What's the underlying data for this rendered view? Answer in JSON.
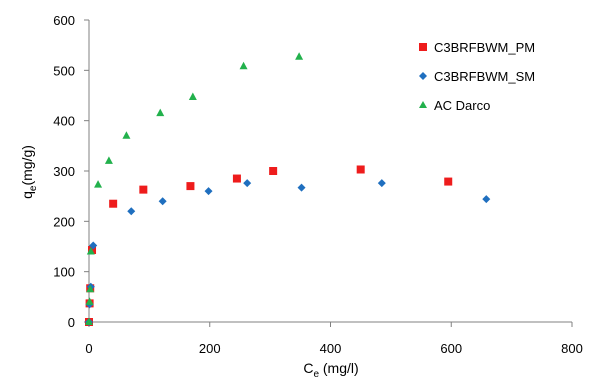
{
  "chart_data": {
    "type": "scatter",
    "xlabel": "C",
    "xlabel_sub": "e",
    "xlabel_suffix": " (mg/l)",
    "ylabel": "q",
    "ylabel_sub": "e",
    "ylabel_suffix": "(mg/g)",
    "xlim": [
      0,
      800
    ],
    "ylim": [
      0,
      600
    ],
    "xticks": [
      0,
      200,
      400,
      600,
      800
    ],
    "yticks": [
      0,
      100,
      200,
      300,
      400,
      500,
      600
    ],
    "grid": false,
    "legend_position": "top-right",
    "series": [
      {
        "name": "C3BRFBWM_PM",
        "marker": "square",
        "color": "#ee1c1c",
        "points": [
          {
            "x": 0,
            "y": 0
          },
          {
            "x": 1,
            "y": 37
          },
          {
            "x": 2,
            "y": 67
          },
          {
            "x": 5,
            "y": 143
          },
          {
            "x": 40,
            "y": 235
          },
          {
            "x": 90,
            "y": 263
          },
          {
            "x": 168,
            "y": 270
          },
          {
            "x": 245,
            "y": 285
          },
          {
            "x": 305,
            "y": 300
          },
          {
            "x": 450,
            "y": 303
          },
          {
            "x": 595,
            "y": 279
          }
        ]
      },
      {
        "name": "C3BRFBWM_SM",
        "marker": "diamond",
        "color": "#1f6fbf",
        "points": [
          {
            "x": 0,
            "y": 0
          },
          {
            "x": 1,
            "y": 35
          },
          {
            "x": 3,
            "y": 70
          },
          {
            "x": 7,
            "y": 152
          },
          {
            "x": 70,
            "y": 220
          },
          {
            "x": 122,
            "y": 240
          },
          {
            "x": 198,
            "y": 260
          },
          {
            "x": 262,
            "y": 276
          },
          {
            "x": 352,
            "y": 267
          },
          {
            "x": 485,
            "y": 276
          },
          {
            "x": 658,
            "y": 244
          }
        ]
      },
      {
        "name": "AC Darco",
        "marker": "triangle",
        "color": "#22b14c",
        "points": [
          {
            "x": 0,
            "y": 0
          },
          {
            "x": 1,
            "y": 40
          },
          {
            "x": 2,
            "y": 65
          },
          {
            "x": 3,
            "y": 140
          },
          {
            "x": 15,
            "y": 273
          },
          {
            "x": 33,
            "y": 320
          },
          {
            "x": 62,
            "y": 370
          },
          {
            "x": 118,
            "y": 415
          },
          {
            "x": 172,
            "y": 447
          },
          {
            "x": 256,
            "y": 508
          },
          {
            "x": 348,
            "y": 527
          }
        ]
      }
    ]
  }
}
